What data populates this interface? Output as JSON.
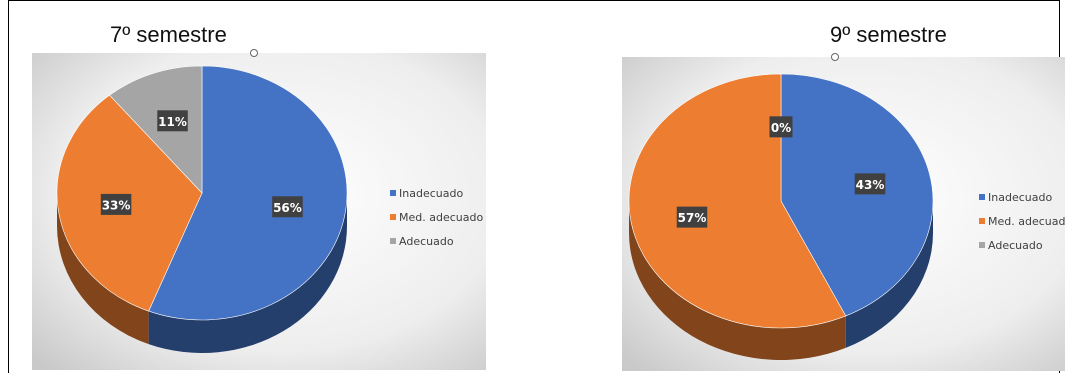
{
  "colors": {
    "inadecuado": "#4472C4",
    "med_adecuado": "#ED7D31",
    "adecuado": "#A5A5A5",
    "label_bg": "#404040",
    "label_text": "#FFFFFF"
  },
  "chart_data": [
    {
      "type": "pie",
      "title": "7º semestre",
      "categories": [
        "Inadecuado",
        "Med. adecuado",
        "Adecuado"
      ],
      "values": [
        56,
        33,
        11
      ],
      "value_labels": [
        "56%",
        "33%",
        "11%"
      ],
      "legend": "right"
    },
    {
      "type": "pie",
      "title": "9º semestre",
      "categories": [
        "Inadecuado",
        "Med. adecuado",
        "Adecuado"
      ],
      "values": [
        43,
        57,
        0
      ],
      "value_labels": [
        "43%",
        "57%",
        "0%"
      ],
      "legend": "right"
    }
  ]
}
